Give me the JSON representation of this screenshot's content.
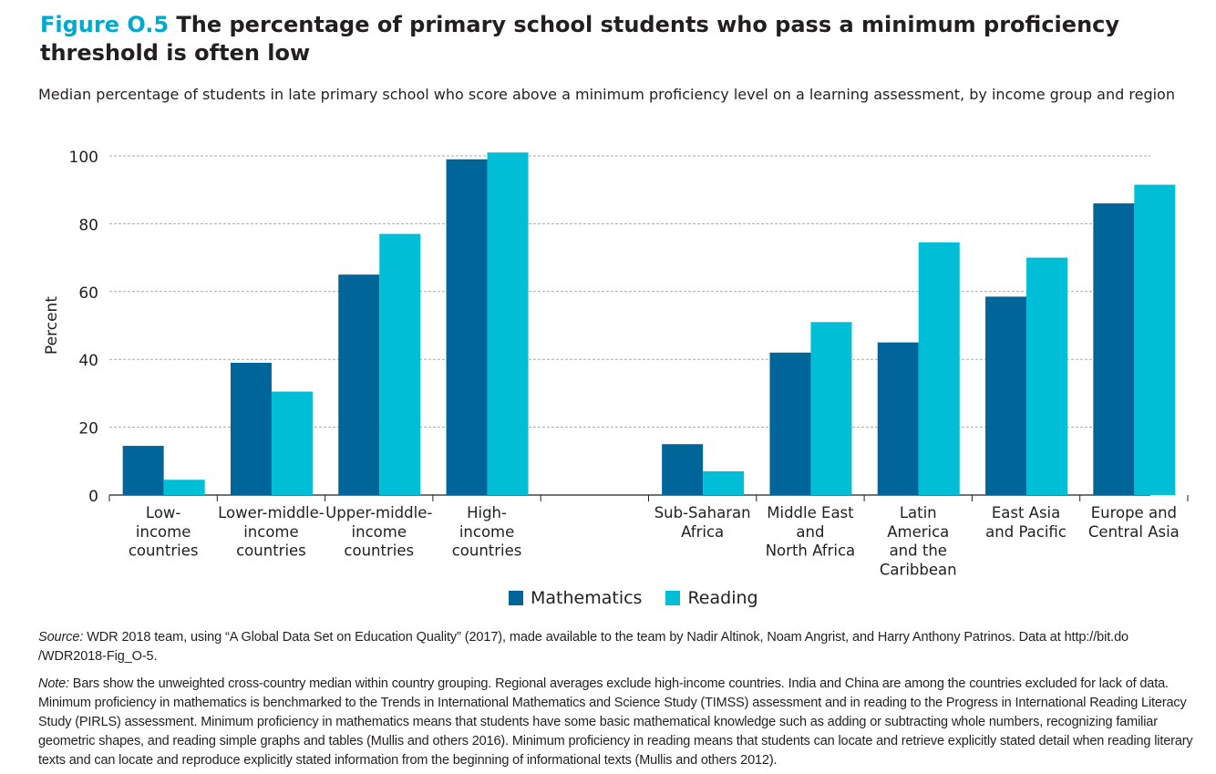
{
  "title": {
    "figure_label": "Figure O.5",
    "text": "The percentage of primary school students who pass a minimum proficiency threshold is often low"
  },
  "subtitle": "Median percentage of students in late primary school who score above a minimum proficiency level on a learning assessment, by income group and region",
  "colors": {
    "mathematics": "#00669a",
    "reading": "#00bed6"
  },
  "chart_data": {
    "type": "bar",
    "ylabel": "Percent",
    "ylim": [
      0,
      100
    ],
    "yticks": [
      0,
      20,
      40,
      60,
      80,
      100
    ],
    "grid": true,
    "legend_position": "bottom",
    "categories": [
      [
        "Low-",
        "income",
        "countries"
      ],
      [
        "Lower-middle-",
        "income",
        "countries"
      ],
      [
        "Upper-middle-",
        "income",
        "countries"
      ],
      [
        "High-",
        "income",
        "countries"
      ],
      [
        "Sub-Saharan",
        "Africa"
      ],
      [
        "Middle East",
        "and",
        "North Africa"
      ],
      [
        "Latin",
        "America",
        "and the",
        "Caribbean"
      ],
      [
        "East Asia",
        "and Pacific"
      ],
      [
        "Europe and",
        "Central Asia"
      ]
    ],
    "series": [
      {
        "name": "Mathematics",
        "values": [
          14.5,
          39,
          65,
          99,
          15,
          42,
          45,
          58.5,
          86
        ]
      },
      {
        "name": "Reading",
        "values": [
          4.5,
          30.5,
          77,
          101,
          7,
          51,
          74.5,
          70,
          91.5
        ]
      }
    ]
  },
  "legend": {
    "math_label": "Mathematics",
    "reading_label": "Reading"
  },
  "source": {
    "lead": "Source:",
    "text": " WDR 2018 team, using “A Global Data Set on Education Quality” (2017), made available to the team by Nadir Altinok, Noam Angrist, and Harry Anthony Patrinos. Data at http://bit.do /WDR2018-Fig_O-5."
  },
  "note": {
    "lead": "Note:",
    "text": " Bars show the unweighted cross-country median within country grouping. Regional averages exclude high-income countries. India and China are among the countries excluded for lack of data. Minimum proficiency in mathematics is benchmarked to the Trends in International Mathematics and Science Study (TIMSS) assessment and in reading to the Progress in International Reading Literacy Study (PIRLS) assessment. Minimum proficiency in mathematics means that students have some basic mathematical knowledge such as adding or subtracting whole numbers, recognizing familiar geometric shapes, and reading simple graphs and tables (Mullis and others 2016). Minimum proficiency in reading means that students can locate and retrieve explicitly stated detail when reading literary texts and can locate and reproduce explicitly stated information from the beginning of informational texts (Mullis and others 2012)."
  }
}
